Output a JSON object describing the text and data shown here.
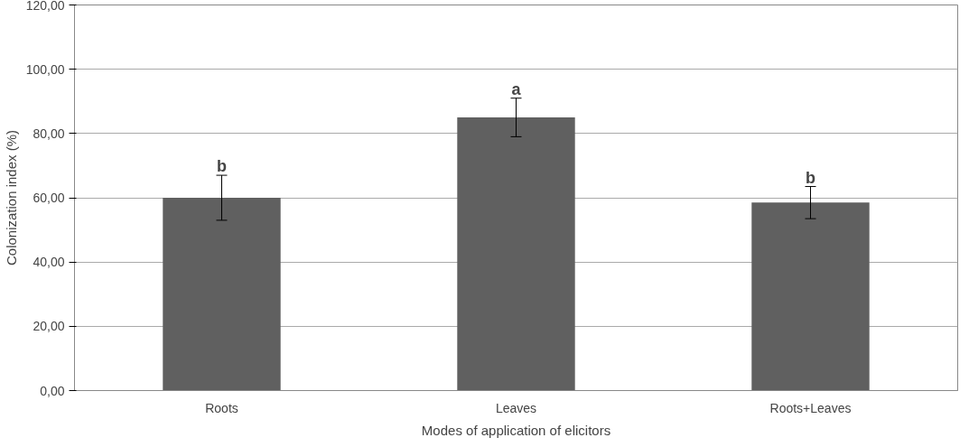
{
  "chart_data": {
    "type": "bar",
    "categories": [
      "Roots",
      "Leaves",
      "Roots+Leaves"
    ],
    "values": [
      60,
      85,
      58.5
    ],
    "color": "#606060",
    "errors": [
      7,
      6,
      5
    ],
    "xlabel": "Modes of application of elicitors",
    "ylabel": "Colonization index (%)",
    "ylim": [
      0,
      120
    ],
    "yticks": [
      {
        "value": 0,
        "label": "0,00"
      },
      {
        "value": 20,
        "label": "20,00"
      },
      {
        "value": 40,
        "label": "40,00"
      },
      {
        "value": 60,
        "label": "60,00"
      },
      {
        "value": 80,
        "label": "80,00"
      },
      {
        "value": 100,
        "label": "100,00"
      },
      {
        "value": 120,
        "label": "120,00"
      }
    ],
    "grid": "y",
    "annotations": [
      {
        "text": "b",
        "x": "Roots",
        "y": 67
      },
      {
        "text": "a",
        "x": "Leaves",
        "y": 91
      },
      {
        "text": "b",
        "x": "Roots+Leaves",
        "y": 63.5
      }
    ]
  }
}
